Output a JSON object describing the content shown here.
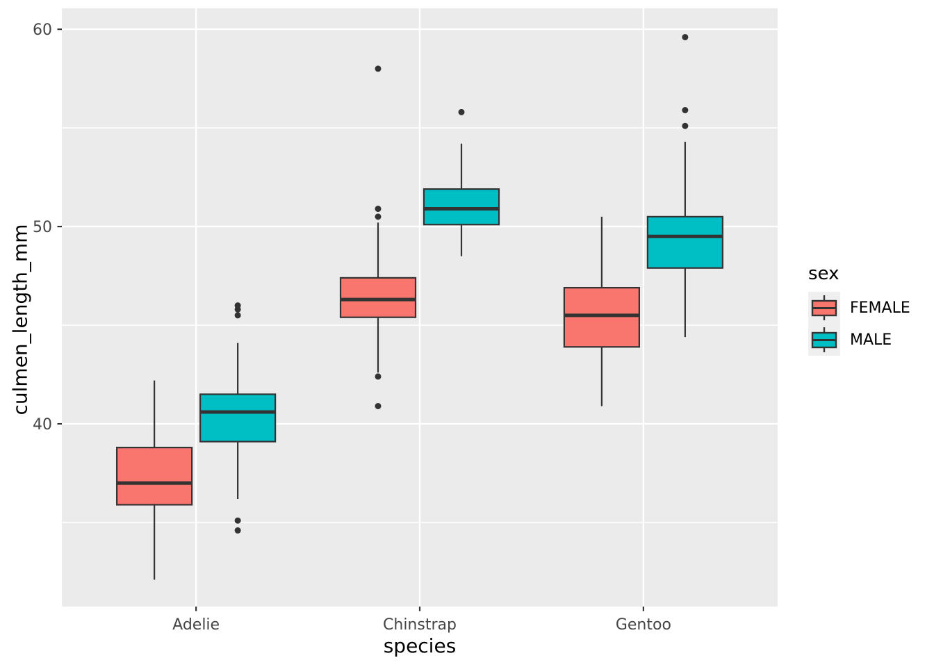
{
  "chart_data": {
    "type": "boxplot",
    "title": "",
    "xlabel": "species",
    "ylabel": "culmen_length_mm",
    "legend_title": "sex",
    "legend_position": "right",
    "categories": [
      "Adelie",
      "Chinstrap",
      "Gentoo"
    ],
    "groups": [
      "FEMALE",
      "MALE"
    ],
    "group_colors": {
      "FEMALE": "#F8766D",
      "MALE": "#00BFC4"
    },
    "x_axis": {
      "label": "species",
      "tick_labels": [
        "Adelie",
        "Chinstrap",
        "Gentoo"
      ]
    },
    "y_axis": {
      "label": "culmen_length_mm",
      "major_ticks": [
        40,
        50,
        60
      ],
      "minor_gridlines": [
        35,
        45,
        55
      ],
      "range": [
        30.74,
        61.06
      ],
      "grid": true
    },
    "series": [
      {
        "species": "Adelie",
        "sex": "FEMALE",
        "whisker_low": 32.1,
        "q1": 35.9,
        "median": 37.0,
        "q3": 38.8,
        "whisker_high": 42.2,
        "outliers": []
      },
      {
        "species": "Adelie",
        "sex": "MALE",
        "whisker_low": 36.2,
        "q1": 39.1,
        "median": 40.6,
        "q3": 41.5,
        "whisker_high": 44.1,
        "outliers": [
          34.6,
          35.1,
          45.5,
          45.8,
          46.0
        ]
      },
      {
        "species": "Chinstrap",
        "sex": "FEMALE",
        "whisker_low": 42.6,
        "q1": 45.4,
        "median": 46.3,
        "q3": 47.4,
        "whisker_high": 50.2,
        "outliers": [
          40.9,
          42.4,
          50.5,
          50.9,
          58.0
        ]
      },
      {
        "species": "Chinstrap",
        "sex": "MALE",
        "whisker_low": 48.5,
        "q1": 50.1,
        "median": 50.9,
        "q3": 51.9,
        "whisker_high": 54.2,
        "outliers": [
          55.8
        ]
      },
      {
        "species": "Gentoo",
        "sex": "FEMALE",
        "whisker_low": 40.9,
        "q1": 43.9,
        "median": 45.5,
        "q3": 46.9,
        "whisker_high": 50.5,
        "outliers": []
      },
      {
        "species": "Gentoo",
        "sex": "MALE",
        "whisker_low": 44.4,
        "q1": 47.9,
        "median": 49.5,
        "q3": 50.5,
        "whisker_high": 54.3,
        "outliers": [
          55.1,
          55.9,
          59.6
        ]
      }
    ],
    "style": {
      "panel_bg": "#EBEBEB",
      "grid_color": "#FFFFFF",
      "box_border": "#333333",
      "outlier_color": "#333333",
      "tick_mark_color": "#333333",
      "axis_text_color": "#454545",
      "axis_title_color": "#000000",
      "legend_key_bg": "#EFEFEF"
    }
  }
}
